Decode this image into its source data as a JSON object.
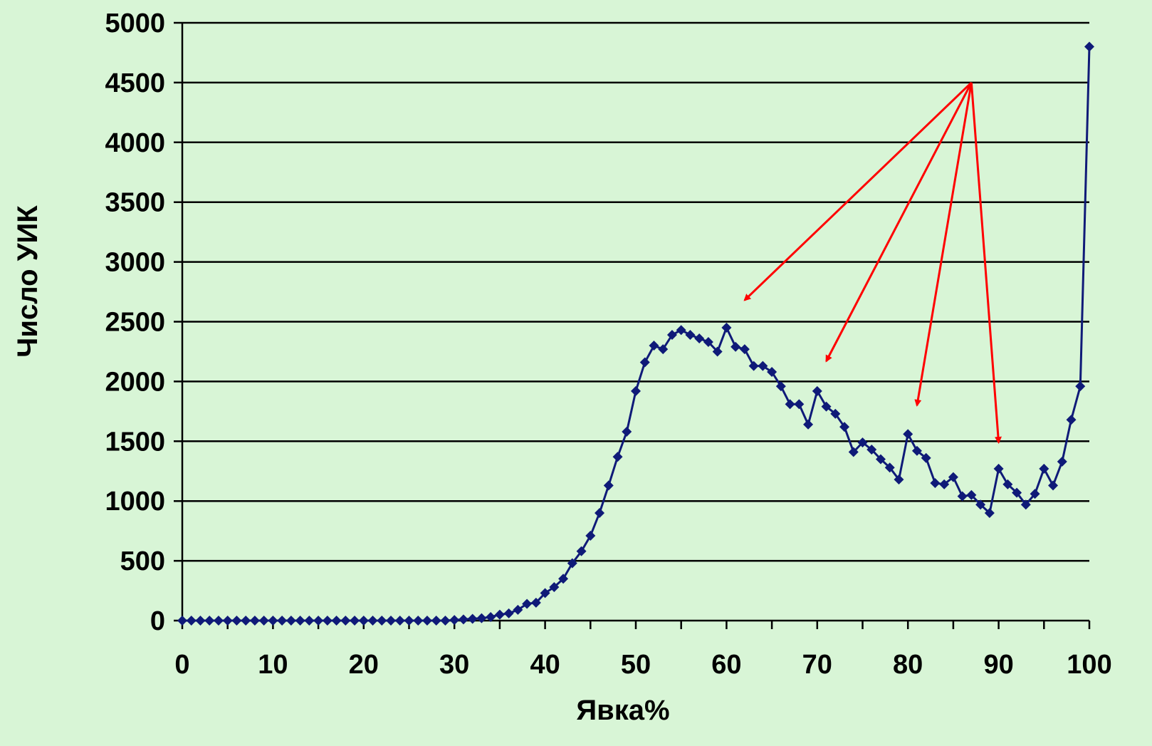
{
  "colors": {
    "background": "#d8f5d6",
    "gridline": "#000000",
    "series": "#0f1a78",
    "annotation_arrows": "#ff0000"
  },
  "chart_data": {
    "type": "line",
    "xlabel": "Явка%",
    "ylabel": "Число УИК",
    "xlim": [
      0,
      100
    ],
    "ylim": [
      0,
      5000
    ],
    "xticks": [
      0,
      10,
      20,
      30,
      40,
      50,
      60,
      70,
      80,
      90,
      100
    ],
    "yticks": [
      0,
      500,
      1000,
      1500,
      2000,
      2500,
      3000,
      3500,
      4000,
      4500,
      5000
    ],
    "grid": "horizontal",
    "marker": "diamond",
    "series": [
      {
        "x": [
          0,
          1,
          2,
          3,
          4,
          5,
          6,
          7,
          8,
          9,
          10,
          11,
          12,
          13,
          14,
          15,
          16,
          17,
          18,
          19,
          20,
          21,
          22,
          23,
          24,
          25,
          26,
          27,
          28,
          29,
          30,
          31,
          32,
          33,
          34,
          35,
          36,
          37,
          38,
          39,
          40,
          41,
          42,
          43,
          44,
          45,
          46,
          47,
          48,
          49,
          50,
          51,
          52,
          53,
          54,
          55,
          56,
          57,
          58,
          59,
          60,
          61,
          62,
          63,
          64,
          65,
          66,
          67,
          68,
          69,
          70,
          71,
          72,
          73,
          74,
          75,
          76,
          77,
          78,
          79,
          80,
          81,
          82,
          83,
          84,
          85,
          86,
          87,
          88,
          89,
          90,
          91,
          92,
          93,
          94,
          95,
          96,
          97,
          98,
          99,
          100
        ],
        "y": [
          0,
          0,
          0,
          0,
          0,
          0,
          0,
          0,
          0,
          0,
          0,
          0,
          0,
          0,
          0,
          0,
          0,
          0,
          0,
          0,
          0,
          0,
          0,
          0,
          0,
          0,
          0,
          0,
          0,
          0,
          5,
          10,
          15,
          20,
          30,
          50,
          60,
          90,
          140,
          150,
          230,
          280,
          350,
          480,
          580,
          710,
          900,
          1130,
          1370,
          1580,
          1920,
          2160,
          2300,
          2270,
          2390,
          2430,
          2390,
          2360,
          2330,
          2250,
          2450,
          2290,
          2270,
          2130,
          2130,
          2080,
          1960,
          1810,
          1810,
          1640,
          1920,
          1790,
          1730,
          1620,
          1410,
          1490,
          1430,
          1350,
          1280,
          1180,
          1560,
          1420,
          1360,
          1150,
          1140,
          1200,
          1040,
          1050,
          970,
          900,
          1270,
          1140,
          1070,
          970,
          1060,
          1270,
          1130,
          1330,
          1680,
          1960,
          4800
        ]
      }
    ],
    "annotations": {
      "type": "arrows",
      "from": [
        87,
        4500
      ],
      "to": [
        [
          62,
          2680
        ],
        [
          71,
          2170
        ],
        [
          81,
          1800
        ],
        [
          90,
          1490
        ]
      ]
    }
  }
}
